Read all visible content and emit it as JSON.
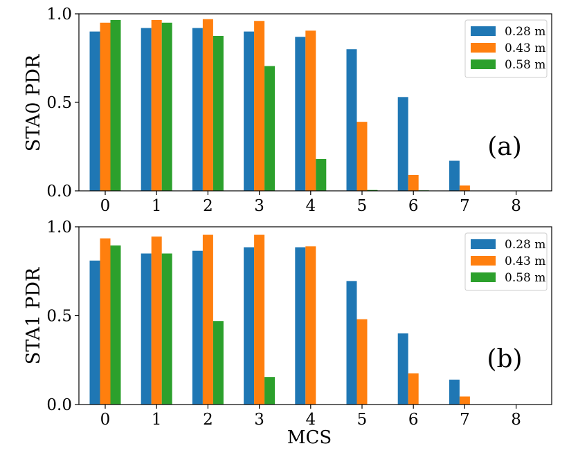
{
  "colors": {
    "s0": "#1f77b4",
    "s1": "#ff7f0e",
    "s2": "#2ca02c"
  },
  "chart_data": [
    {
      "type": "bar",
      "panel_label": "(a)",
      "ylabel": "STA0 PDR",
      "xlabel": "",
      "categories": [
        "0",
        "1",
        "2",
        "3",
        "4",
        "5",
        "6",
        "7",
        "8"
      ],
      "yticks": [
        "0.0",
        "0.5",
        "1.0"
      ],
      "ylim": [
        0,
        1
      ],
      "legend_position": "top-right",
      "series": [
        {
          "name": "0.28 m",
          "values": [
            0.9,
            0.92,
            0.92,
            0.9,
            0.87,
            0.8,
            0.53,
            0.17,
            0.0
          ]
        },
        {
          "name": "0.43 m",
          "values": [
            0.95,
            0.965,
            0.97,
            0.96,
            0.905,
            0.39,
            0.09,
            0.03,
            0.0
          ]
        },
        {
          "name": "0.58 m",
          "values": [
            0.965,
            0.95,
            0.875,
            0.705,
            0.18,
            0.005,
            0.003,
            0.0,
            0.0
          ]
        }
      ]
    },
    {
      "type": "bar",
      "panel_label": "(b)",
      "ylabel": "STA1 PDR",
      "xlabel": "MCS",
      "categories": [
        "0",
        "1",
        "2",
        "3",
        "4",
        "5",
        "6",
        "7",
        "8"
      ],
      "yticks": [
        "0.0",
        "0.5",
        "1.0"
      ],
      "ylim": [
        0,
        1
      ],
      "legend_position": "top-right",
      "series": [
        {
          "name": "0.28 m",
          "values": [
            0.81,
            0.85,
            0.865,
            0.885,
            0.885,
            0.695,
            0.4,
            0.14,
            0.0
          ]
        },
        {
          "name": "0.43 m",
          "values": [
            0.935,
            0.945,
            0.955,
            0.955,
            0.89,
            0.48,
            0.175,
            0.045,
            0.0
          ]
        },
        {
          "name": "0.58 m",
          "values": [
            0.895,
            0.85,
            0.47,
            0.155,
            0.002,
            0.0,
            0.0,
            0.0,
            0.0
          ]
        }
      ]
    }
  ]
}
